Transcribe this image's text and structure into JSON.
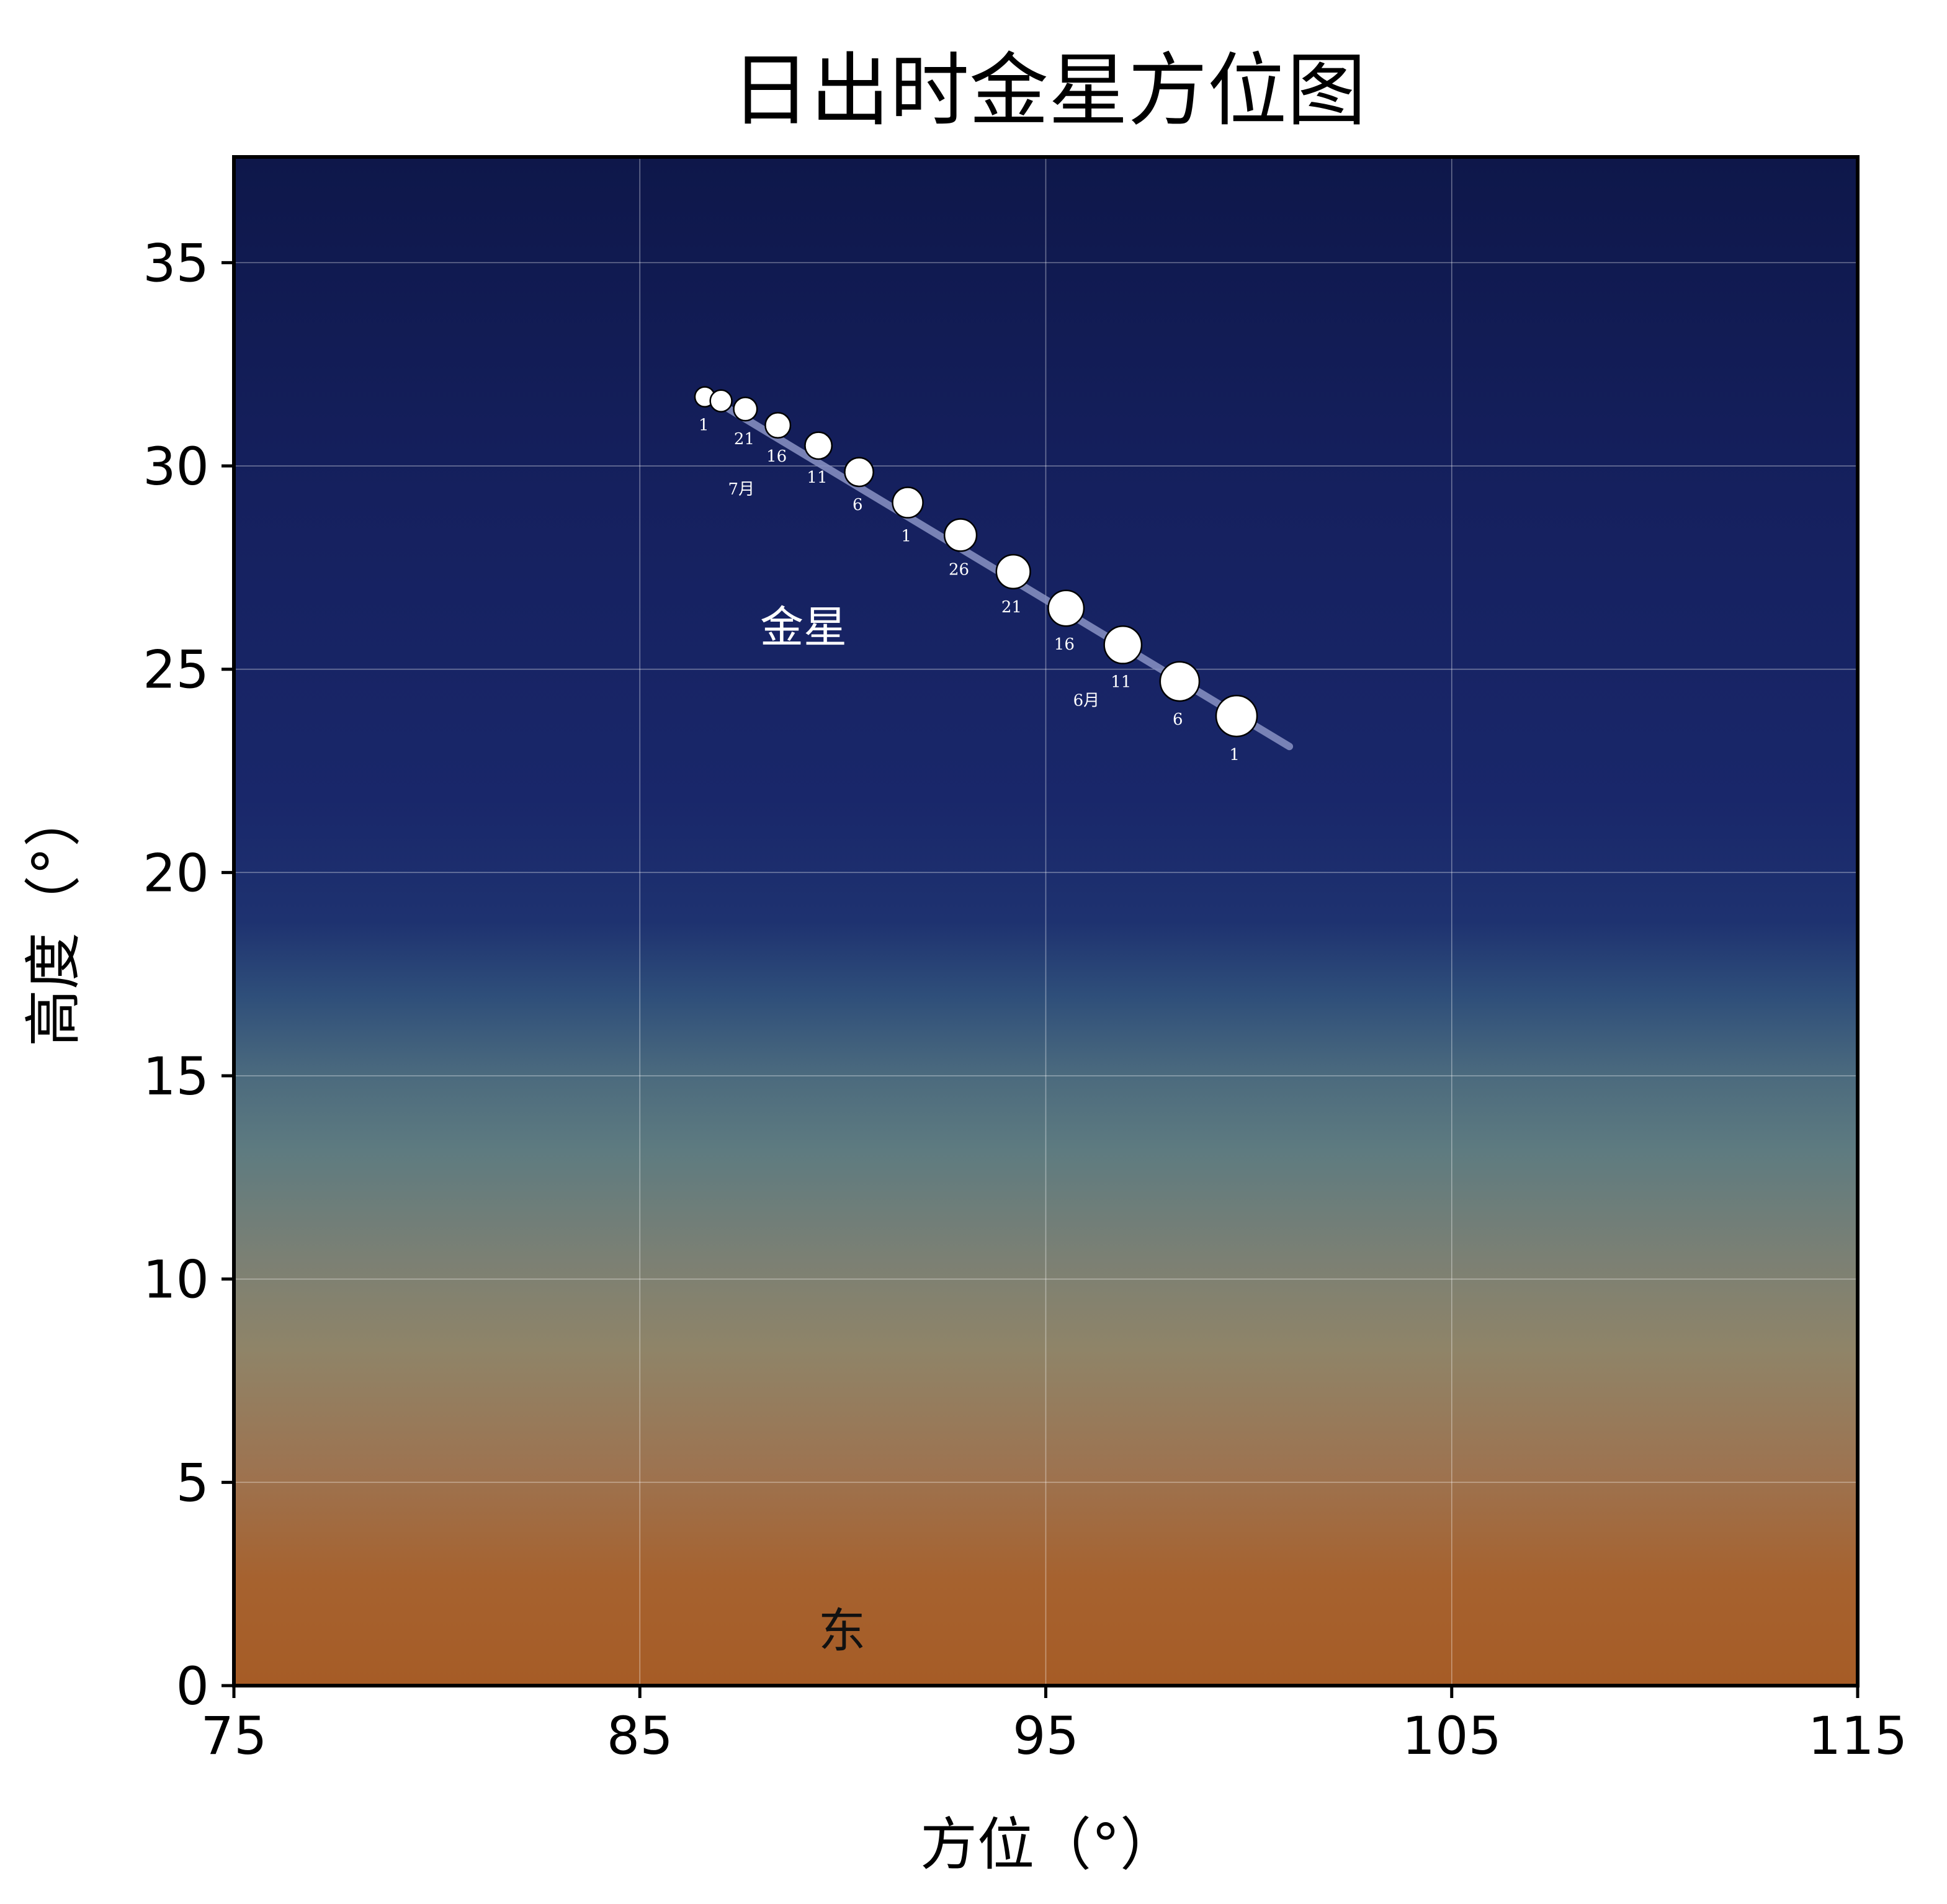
{
  "chart_data": {
    "type": "scatter",
    "title": "日出时金星方位图",
    "xlabel": "方位（°）",
    "ylabel": "高度（°）",
    "xlim": [
      75,
      115
    ],
    "ylim": [
      0,
      37.6
    ],
    "xticks": [
      "75",
      "85",
      "95",
      "105",
      "115"
    ],
    "yticks": [
      "0",
      "5",
      "10",
      "15",
      "20",
      "25",
      "30",
      "35"
    ],
    "grid": true,
    "background": "sky gradient: deep navy at top to orange-brown near horizon",
    "colors": {
      "sky_top": "#0e174a",
      "sky_mid": "#19276a",
      "sky_blue": "#2f4f7a",
      "sky_teal": "#5e7b80",
      "sky_warm": "#8f8468",
      "horizon": "#a65c26",
      "marker_fill": "#ffffff",
      "marker_edge": "#000000",
      "track": "#8a93c4"
    },
    "track": {
      "x": [
        86.7,
        101.0
      ],
      "y": [
        31.7,
        23.1
      ]
    },
    "series_label": "金星",
    "direction_label": "东",
    "points": [
      {
        "x": 99.7,
        "y": 23.85,
        "label": "1"
      },
      {
        "x": 98.3,
        "y": 24.7,
        "label": "6"
      },
      {
        "x": 96.9,
        "y": 25.6,
        "label": "11"
      },
      {
        "x": 95.5,
        "y": 26.5,
        "label": "16"
      },
      {
        "x": 94.2,
        "y": 27.4,
        "label": "21"
      },
      {
        "x": 92.9,
        "y": 28.3,
        "label": "26"
      },
      {
        "x": 91.6,
        "y": 29.1,
        "label": "1"
      },
      {
        "x": 90.4,
        "y": 29.85,
        "label": "6"
      },
      {
        "x": 89.4,
        "y": 30.5,
        "label": "11"
      },
      {
        "x": 88.4,
        "y": 31.0,
        "label": "16"
      },
      {
        "x": 87.6,
        "y": 31.4,
        "label": "21"
      },
      {
        "x": 87.0,
        "y": 31.6,
        "label": ""
      },
      {
        "x": 86.6,
        "y": 31.7,
        "label": "1"
      }
    ],
    "month_labels": [
      {
        "text": "6月",
        "x": 96.0,
        "y": 24.1
      },
      {
        "text": "7月",
        "x": 87.5,
        "y": 29.3
      }
    ]
  }
}
